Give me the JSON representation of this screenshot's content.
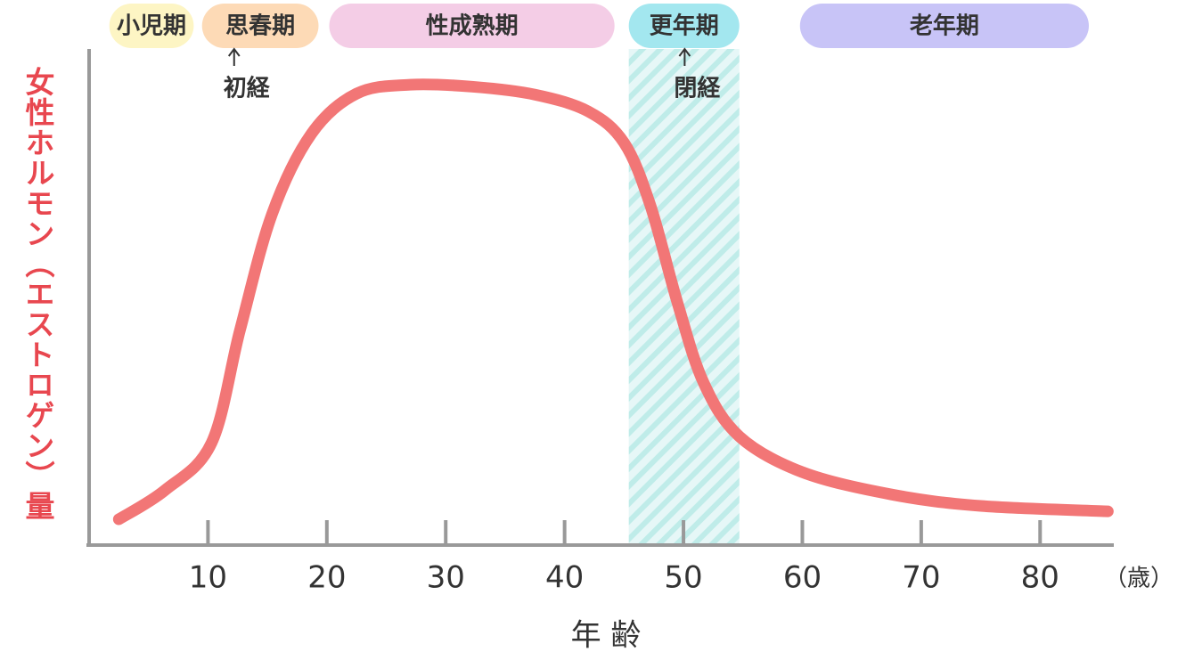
{
  "chart_data": {
    "type": "line",
    "y_label": "女性ホルモン（エストロゲン）量",
    "x_label": "年 齢",
    "x_unit": "（歳）",
    "x": [
      2.5,
      6.4,
      10.3,
      12.7,
      15.4,
      18.7,
      22.5,
      27,
      32.2,
      37.5,
      42,
      45,
      47.2,
      49.5,
      51.7,
      54.7,
      60,
      67.5,
      75,
      85.7
    ],
    "values": [
      5.2,
      11.1,
      20.6,
      43.4,
      66.8,
      82.9,
      91,
      92.8,
      92.4,
      90.8,
      87.4,
      81.1,
      68.6,
      48.8,
      32.7,
      21.9,
      14.7,
      10.2,
      7.9,
      6.8
    ],
    "color": "#f27676",
    "xlim": [
      0,
      86.2
    ],
    "ylim": [
      0,
      100
    ],
    "xticks": [
      10,
      20,
      30,
      40,
      50,
      60,
      70,
      80
    ],
    "phases": [
      {
        "label": "小児期",
        "start": 1.7,
        "end": 8.8,
        "color": "#fdf5c4"
      },
      {
        "label": "思春期",
        "start": 9.5,
        "end": 19.3,
        "color": "#fddab6"
      },
      {
        "label": "性成熟期",
        "start": 20.2,
        "end": 44.2,
        "color": "#f4cde6"
      },
      {
        "label": "更年期",
        "start": 45.4,
        "end": 54.7,
        "color": "#a3e7ef",
        "hatched": true
      },
      {
        "label": "老年期",
        "start": 59.8,
        "end": 84.1,
        "color": "#c8c4f7"
      }
    ],
    "annotations": [
      {
        "text": "初経",
        "x": 12.2
      },
      {
        "text": "閉経",
        "x": 50.1
      }
    ]
  }
}
